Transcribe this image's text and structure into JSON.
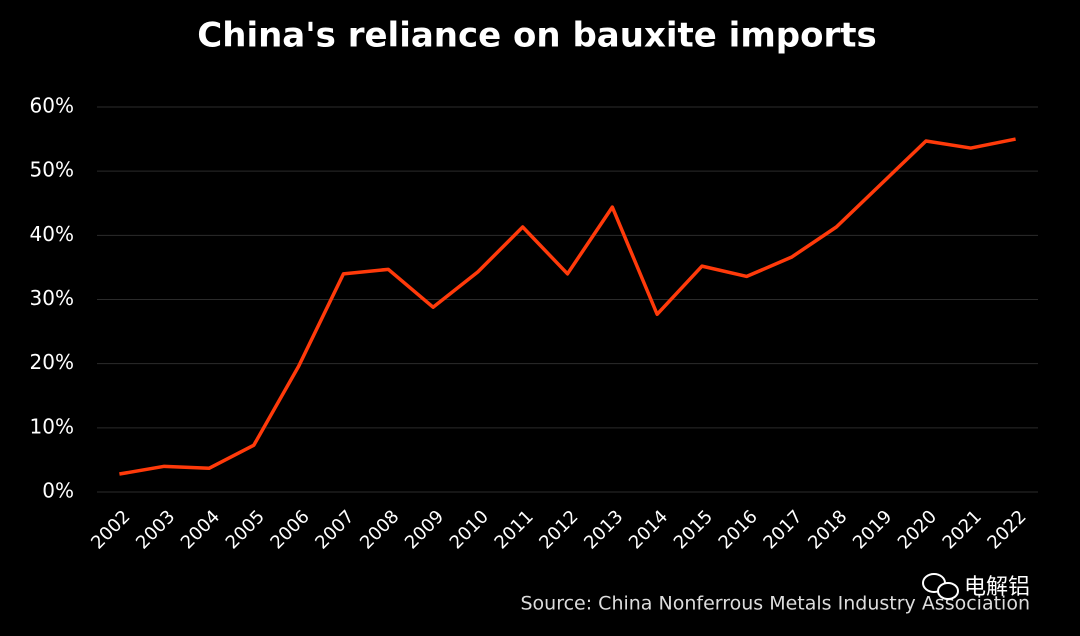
{
  "chart_data": {
    "type": "line",
    "title": "China's reliance on bauxite imports",
    "categories": [
      "2002",
      "2003",
      "2004",
      "2005",
      "2006",
      "2007",
      "2008",
      "2009",
      "2010",
      "2011",
      "2012",
      "2013",
      "2014",
      "2015",
      "2016",
      "2017",
      "2018",
      "2019",
      "2020",
      "2021",
      "2022"
    ],
    "values": [
      2.8,
      4.0,
      3.7,
      7.3,
      19.6,
      34.0,
      34.7,
      28.8,
      34.3,
      41.3,
      34.0,
      44.4,
      27.7,
      35.2,
      33.6,
      36.6,
      41.3,
      48.0,
      54.7,
      53.6,
      55.0
    ],
    "color": "#ff3a0a",
    "ylim": [
      0,
      60
    ],
    "yticks": [
      {
        "value": 0,
        "label": "0%"
      },
      {
        "value": 10,
        "label": "10%"
      },
      {
        "value": 20,
        "label": "20%"
      },
      {
        "value": 30,
        "label": "30%"
      },
      {
        "value": 40,
        "label": "40%"
      },
      {
        "value": 50,
        "label": "50%"
      },
      {
        "value": 60,
        "label": "60%"
      }
    ],
    "grid": true,
    "source": "Source: China Nonferrous Metals Industry Association",
    "watermark": "电解铝"
  }
}
